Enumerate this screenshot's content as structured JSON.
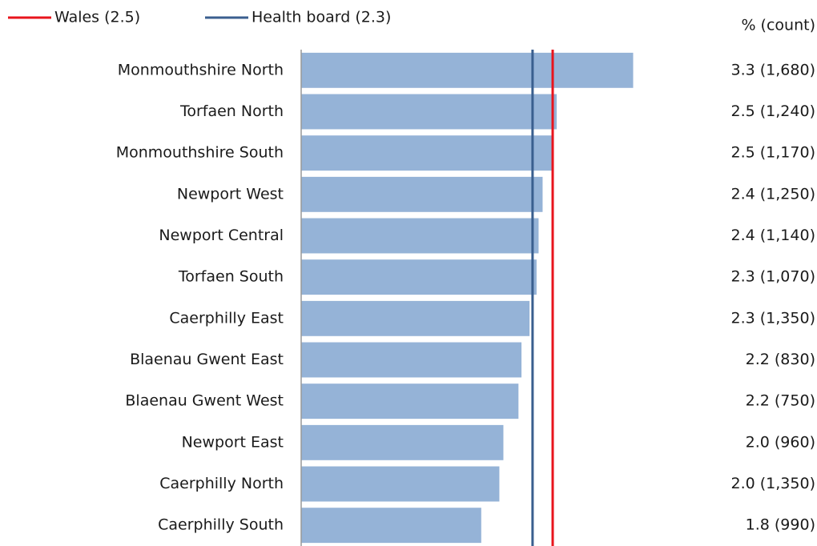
{
  "chart_data": {
    "type": "hbar",
    "value_label_header": "% (count)",
    "categories": [
      "Monmouthshire North",
      "Torfaen North",
      "Monmouthshire South",
      "Newport West",
      "Newport Central",
      "Torfaen South",
      "Caerphilly East",
      "Blaenau Gwent East",
      "Blaenau Gwent West",
      "Newport East",
      "Caerphilly North",
      "Caerphilly South"
    ],
    "values": [
      3.3,
      2.54,
      2.49,
      2.4,
      2.36,
      2.34,
      2.27,
      2.19,
      2.16,
      2.01,
      1.97,
      1.79
    ],
    "value_labels": [
      "3.3 (1,680)",
      "2.5 (1,240)",
      "2.5 (1,170)",
      "2.4 (1,250)",
      "2.4 (1,140)",
      "2.3 (1,070)",
      "2.3 (1,350)",
      "2.2 (830)",
      "2.2 (750)",
      "2.0 (960)",
      "2.0 (1,350)",
      "1.8 (990)"
    ],
    "color": "#95b3d7",
    "xlim": [
      0,
      5
    ],
    "reference_lines": [
      {
        "label": "Wales (2.5)",
        "value": 2.5,
        "color": "#e8141c"
      },
      {
        "label": "Health board (2.3)",
        "value": 2.3,
        "color": "#3a5f8f"
      }
    ]
  }
}
